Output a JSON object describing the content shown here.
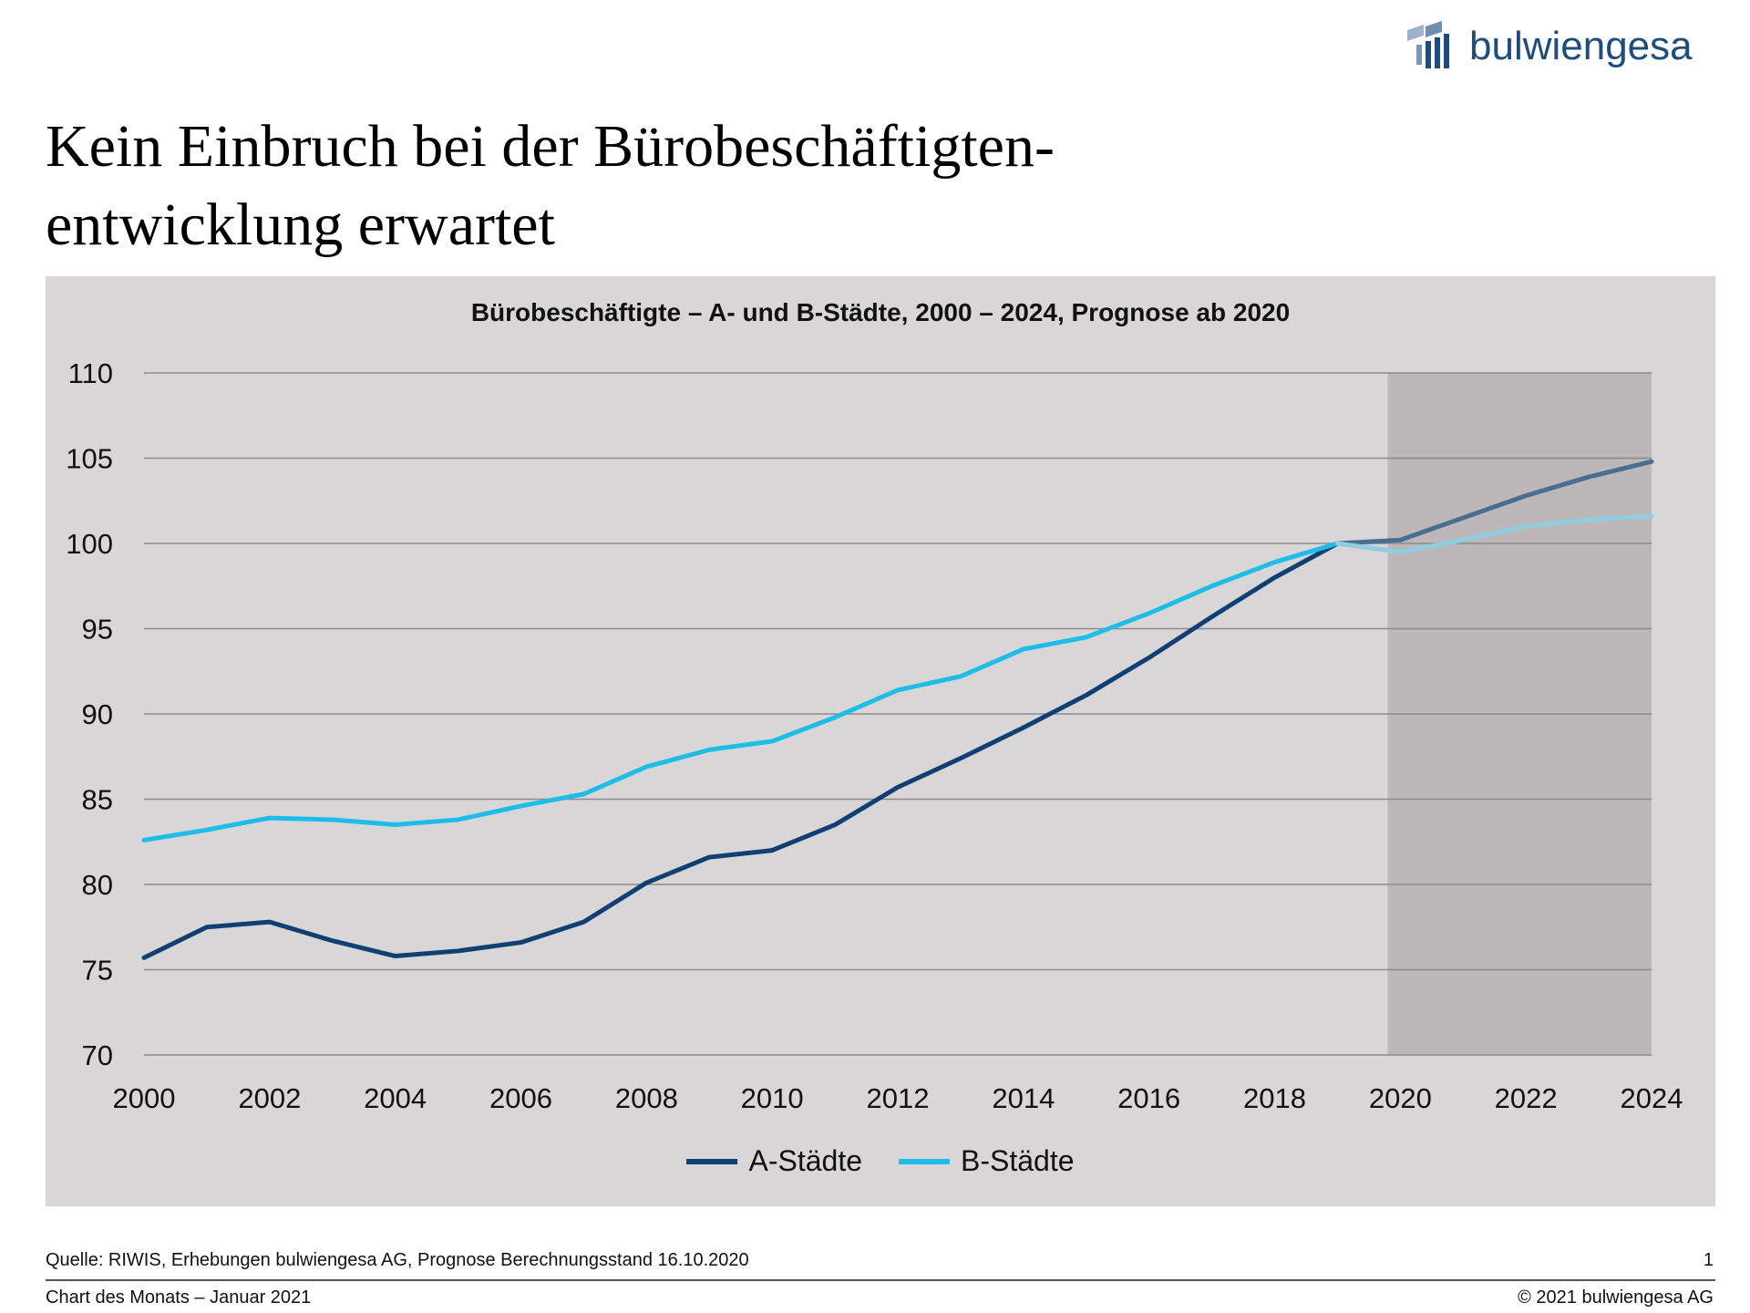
{
  "brand": {
    "logo_text": "bulwiengesa",
    "logo_icon": "bulwiengesa-logo-icon",
    "color": "#1e4d7b"
  },
  "headline": {
    "line1": "Kein Einbruch bei der Bürobeschäftigten-",
    "line2": "entwicklung erwartet"
  },
  "chart_data": {
    "type": "line",
    "title": "Bürobeschäftigte – A- und B-Städte, 2000 – 2024, Prognose ab 2020",
    "xlabel": "",
    "ylabel": "",
    "x": [
      2000,
      2001,
      2002,
      2003,
      2004,
      2005,
      2006,
      2007,
      2008,
      2009,
      2010,
      2011,
      2012,
      2013,
      2014,
      2015,
      2016,
      2017,
      2018,
      2019,
      2020,
      2021,
      2022,
      2023,
      2024
    ],
    "xlim": [
      2000,
      2024
    ],
    "ylim": [
      70,
      110
    ],
    "x_ticks": [
      "2000",
      "2002",
      "2004",
      "2006",
      "2008",
      "2010",
      "2012",
      "2014",
      "2016",
      "2018",
      "2020",
      "2022",
      "2024"
    ],
    "y_ticks": [
      "70",
      "75",
      "80",
      "85",
      "90",
      "95",
      "100",
      "105",
      "110"
    ],
    "grid": "horizontal",
    "forecast_from": 2020,
    "legend_position": "bottom",
    "series": [
      {
        "name": "A-Städte",
        "color": "#0f3f73",
        "forecast_color": "#4a6e90",
        "values": [
          75.7,
          77.5,
          77.8,
          76.7,
          75.8,
          76.1,
          76.6,
          77.8,
          80.1,
          81.6,
          82.0,
          83.5,
          85.7,
          87.4,
          89.2,
          91.1,
          93.3,
          95.7,
          98.0,
          100.0,
          100.2,
          101.5,
          102.8,
          103.9,
          104.8
        ]
      },
      {
        "name": "B-Städte",
        "color": "#1ebde8",
        "forecast_color": "#8fcde0",
        "values": [
          82.6,
          83.2,
          83.9,
          83.8,
          83.5,
          83.8,
          84.6,
          85.3,
          86.9,
          87.9,
          88.4,
          89.8,
          91.4,
          92.2,
          93.8,
          94.5,
          95.9,
          97.5,
          98.9,
          100.0,
          99.5,
          100.2,
          101.0,
          101.4,
          101.6
        ]
      }
    ],
    "forecast_shade_color": "#bdb7b9",
    "panel_color": "#d8d6d7"
  },
  "footer": {
    "source": "Quelle: RIWIS, Erhebungen bulwiengesa AG, Prognose Berechnungsstand 16.10.2020",
    "page_number": "1",
    "left": "Chart des Monats – Januar 2021",
    "right": "© 2021 bulwiengesa AG"
  }
}
